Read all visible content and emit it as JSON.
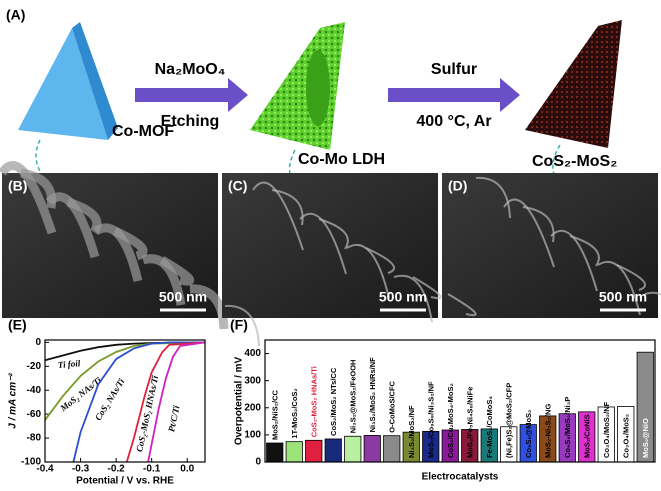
{
  "schematic": {
    "label": "(A)",
    "stages": [
      "Co-MOF",
      "Co-Mo LDH",
      "CoS₂-MoS₂"
    ],
    "steps": [
      {
        "above": "Na₂MoO₄",
        "below": "Etching"
      },
      {
        "above": "Sulfur",
        "below": "400 °C, Ar"
      }
    ]
  },
  "sem_panels": [
    {
      "label": "(B)",
      "scale_bar": "500 nm"
    },
    {
      "label": "(C)",
      "scale_bar": "500 nm"
    },
    {
      "label": "(D)",
      "scale_bar": "500 nm"
    }
  ],
  "chart_data": [
    {
      "type": "line",
      "panel_label": "(E)",
      "x_label": "Potential / V vs. RHE",
      "y_label": "J / mA cm⁻²",
      "xlim": [
        -0.4,
        0.05
      ],
      "ylim": [
        -100,
        2
      ],
      "xticks": [
        -0.4,
        -0.3,
        -0.2,
        -0.1,
        {
          "value": 0,
          "label": "0.0"
        }
      ],
      "yticks": [
        0,
        -20,
        -40,
        -60,
        -80,
        -100
      ],
      "series": [
        {
          "name": "Ti foil",
          "color": "#111111",
          "x": [
            -0.4,
            -0.35,
            -0.3,
            -0.25,
            -0.2,
            -0.15,
            -0.1,
            0.05
          ],
          "values": [
            -15,
            -11,
            -7,
            -4,
            -2,
            -1,
            -0.5,
            0
          ]
        },
        {
          "name": "MoS₂ NAs/Ti",
          "color": "#7a9a2a",
          "x": [
            -0.4,
            -0.35,
            -0.3,
            -0.25,
            -0.2,
            -0.15,
            -0.1,
            0.05
          ],
          "values": [
            -65,
            -45,
            -28,
            -16,
            -8,
            -3,
            -1,
            0
          ]
        },
        {
          "name": "CoS₂ NAs/Ti",
          "color": "#2a4fd0",
          "x": [
            -0.32,
            -0.3,
            -0.25,
            -0.2,
            -0.15,
            -0.1,
            -0.05,
            0.05
          ],
          "values": [
            -100,
            -75,
            -35,
            -14,
            -5,
            -1,
            0,
            0
          ]
        },
        {
          "name": "CoS₂-MoS₂ HNAs/Ti",
          "color": "#e0203a",
          "x": [
            -0.17,
            -0.15,
            -0.12,
            -0.1,
            -0.07,
            -0.05,
            0.05
          ],
          "values": [
            -100,
            -80,
            -45,
            -25,
            -8,
            -2,
            0
          ]
        },
        {
          "name": "Pt/C/Ti",
          "color": "#d020c0",
          "x": [
            -0.11,
            -0.1,
            -0.08,
            -0.06,
            -0.04,
            -0.02,
            0.05
          ],
          "values": [
            -100,
            -85,
            -55,
            -30,
            -12,
            -3,
            0
          ]
        }
      ]
    },
    {
      "type": "bar",
      "panel_label": "(F)",
      "x_label": "Electrocatalysts",
      "y_label": "Overpotential / mV",
      "ylim": [
        0,
        450
      ],
      "yticks": [
        0,
        100,
        200,
        300,
        400
      ],
      "categories": [
        "MoS₂/NiS₂/CC",
        "1T-MoS₂/CoS₂",
        "CoS₂-MoS₂ HNAs/Ti",
        "CoS₂/MoS₂ NTs/CC",
        "Ni₃S₂@MoS₂/FeOOH",
        "Ni₃S₂/MoS₂ HNRs/NF",
        "O-CoMoS/CFC",
        "Ni₃S₂/MoS₂/NF",
        "MoS₂/Co₉S₈/Ni₃S₂/NF",
        "CoS₂/Cu₂MoS₄-MoS₂",
        "MoS₂/Fe₅Ni₄S₈/NiFe",
        "Fe-MoS₂/CoMoS₄",
        "(Ni,Fe)S₂@MoS₂/CFP",
        "Co₉S₈@MoS₂",
        "MoS₂-Ni₃S₂/NG",
        "Co₉S₈/MoS₂/Ni₃P",
        "MoS₂/CoNiS",
        "Co₃O₄/MoS₂/NF",
        "Co₃O₄/MoS₂",
        "MoS₂@NiO"
      ],
      "values": [
        70,
        75,
        80,
        85,
        95,
        98,
        97,
        110,
        113,
        118,
        120,
        122,
        130,
        138,
        170,
        178,
        185,
        203,
        205,
        405
      ],
      "colors": [
        "#111111",
        "#9be37a",
        "#e02040",
        "#1a2a7a",
        "#b8f0a0",
        "#8a3aa0",
        "#8a8a8a",
        "#7a8a30",
        "#1a2a8a",
        "#8a1a9a",
        "#8a1a3a",
        "#1a7a7a",
        "#ffffff",
        "#3050e0",
        "#8a4a1a",
        "#9a3ac0",
        "#e030d0",
        "#ffffff",
        "#ffffff",
        "#8a8a8a"
      ],
      "label_colors": [
        "#000",
        "#000",
        "#e02040",
        "#000",
        "#000",
        "#000",
        "#000",
        "#000",
        "#000",
        "#000",
        "#000",
        "#000",
        "#000",
        "#000",
        "#000",
        "#000",
        "#000",
        "#000",
        "#000",
        "#ffffff"
      ]
    }
  ]
}
